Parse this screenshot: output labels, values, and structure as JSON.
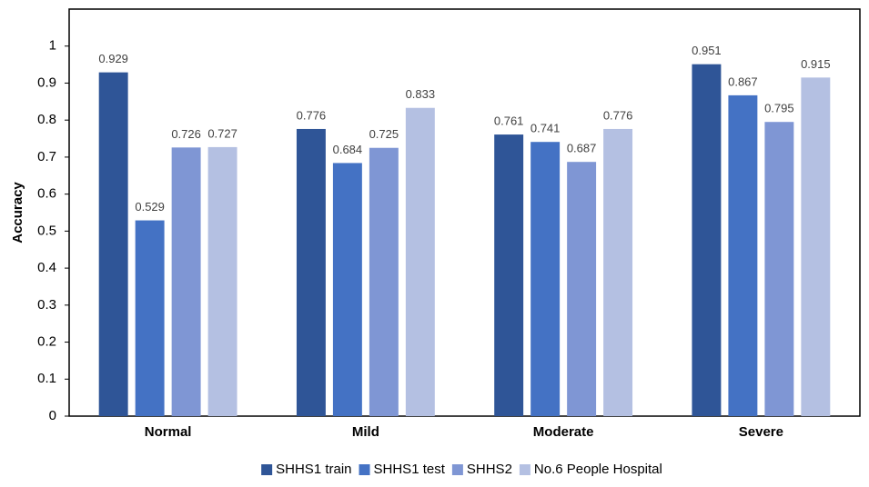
{
  "chart_data": {
    "type": "bar",
    "y_label": "Accuracy",
    "categories": [
      "Normal",
      "Mild",
      "Moderate",
      "Severe"
    ],
    "series": [
      {
        "name": "SHHS1 train",
        "color": "#2f5597",
        "values": [
          0.929,
          0.776,
          0.761,
          0.951
        ]
      },
      {
        "name": "SHHS1 test",
        "color": "#4472c4",
        "values": [
          0.529,
          0.684,
          0.741,
          0.867
        ]
      },
      {
        "name": "SHHS2",
        "color": "#7f96d4",
        "values": [
          0.726,
          0.725,
          0.687,
          0.795
        ]
      },
      {
        "name": "No.6 People Hospital",
        "color": "#b4c0e2",
        "values": [
          0.727,
          0.833,
          0.776,
          0.915
        ]
      }
    ],
    "ylim": [
      0,
      1.1
    ],
    "yticks": [
      0,
      0.1,
      0.2,
      0.3,
      0.4,
      0.5,
      0.6,
      0.7,
      0.8,
      0.9,
      1
    ],
    "grid": false,
    "legend": "bottom"
  }
}
